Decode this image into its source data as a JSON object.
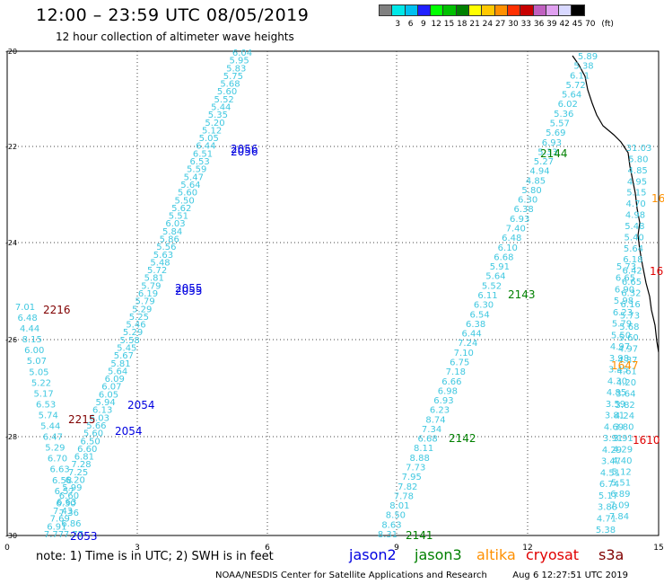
{
  "header": {
    "title": "12:00 – 23:59 UTC 08/05/2019",
    "subtitle": "12 hour collection of altimeter wave heights"
  },
  "color_scale": {
    "unit_label": "(ft)",
    "colors": [
      "#808080",
      "#00e8e8",
      "#00c0f0",
      "#2020ff",
      "#00ff00",
      "#00c000",
      "#008000",
      "#ffff00",
      "#ffc800",
      "#ff9000",
      "#ff3000",
      "#c80000",
      "#c060c0",
      "#e0a0f0",
      "#d8d8ff",
      "#000000"
    ],
    "labels": [
      "3",
      "6",
      "9",
      "12",
      "15",
      "18",
      "21",
      "24",
      "27",
      "30",
      "33",
      "36",
      "39",
      "42",
      "45",
      "70"
    ]
  },
  "axes": {
    "x_ticks": [
      "0",
      "3",
      "6",
      "9",
      "12",
      "15"
    ],
    "y_ticks": [
      "-20",
      "-22",
      "-24",
      "-26",
      "-28",
      "-30"
    ]
  },
  "tracks": [
    {
      "name": "track-jason2-2053-2056",
      "color": "#40c8e0",
      "x0": 270,
      "y0": 62,
      "x1": 60,
      "y1": 598,
      "values": [
        "6.04",
        "5.95",
        "5.83",
        "5.75",
        "5.68",
        "5.60",
        "5.52",
        "5.44",
        "5.35",
        "5.20",
        "5.12",
        "5.05",
        "6.44",
        "6.51",
        "6.53",
        "5.59",
        "5.47",
        "5.64",
        "5.60",
        "5.50",
        "5.62",
        "5.51",
        "6.03",
        "5.84",
        "5.86",
        "5.56",
        "5.63",
        "5.48",
        "5.72",
        "5.81",
        "5.79",
        "6.19",
        "5.79",
        "5.29",
        "5.25",
        "5.46",
        "5.29",
        "5.58",
        "5.45",
        "5.67",
        "5.81",
        "5.64",
        "6.09",
        "6.07",
        "6.05",
        "5.94",
        "6.13",
        "6.03",
        "5.66",
        "5.60",
        "6.50",
        "6.60",
        "6.81",
        "7.28",
        "7.25",
        "6.20",
        "5.99",
        "6.60",
        "6.30",
        "7.43",
        "7.69",
        "6.91",
        "7.77"
      ]
    },
    {
      "name": "track-jason2-left",
      "color": "#40c8e0",
      "x0": 28,
      "y0": 345,
      "x1": 82,
      "y1": 598,
      "values": [
        "7.01",
        "6.48",
        "4.44",
        "8.15",
        "6.00",
        "5.07",
        "5.05",
        "5.22",
        "5.17",
        "6.53",
        "5.74",
        "5.44",
        "6.47",
        "5.29",
        "6.70",
        "6.63",
        "6.58",
        "6.57",
        "6.63",
        "7.36",
        "6.86",
        "7.77"
      ]
    },
    {
      "name": "track-jason3-2141-2144",
      "color": "#40c8e0",
      "x0": 655,
      "y0": 66,
      "x1": 432,
      "y1": 598,
      "values": [
        "5.89",
        "5.38",
        "6.11",
        "5.72",
        "5.64",
        "6.02",
        "5.36",
        "5.57",
        "5.69",
        "6.93",
        "5.33",
        "5.27",
        "4.94",
        "4.85",
        "5.80",
        "6.30",
        "6.38",
        "6.93",
        "7.40",
        "6.48",
        "6.10",
        "6.68",
        "5.91",
        "5.64",
        "5.52",
        "6.11",
        "6.30",
        "6.54",
        "6.38",
        "6.44",
        "7.24",
        "7.10",
        "6.75",
        "7.18",
        "6.66",
        "6.98",
        "6.93",
        "6.23",
        "8.74",
        "7.34",
        "6.68",
        "8.11",
        "8.88",
        "7.73",
        "7.95",
        "7.82",
        "7.78",
        "8.01",
        "8.50",
        "8.63",
        "8.31"
      ]
    },
    {
      "name": "track-s3a-right",
      "color": "#40c8e0",
      "x0": 712,
      "y0": 168,
      "x1": 690,
      "y1": 578,
      "values": [
        "31.03",
        "5.80",
        "4.85",
        "4.95",
        "5.15",
        "4.70",
        "4.98",
        "5.48",
        "5.40",
        "5.64",
        "6.18",
        "6.42",
        "6.65",
        "6.32",
        "6.16",
        "5.73",
        "5.68",
        "5.60",
        "4.97",
        "4.87",
        "4.61",
        "4.20",
        "3.64",
        "3.82",
        "4.24",
        "3.80",
        "3.91",
        "4.29",
        "4.40",
        "5.12",
        "5.51",
        "6.89",
        "7.09",
        "7.84"
      ]
    },
    {
      "name": "track-right-inner",
      "color": "#40c8e0",
      "x0": 698,
      "y0": 300,
      "x1": 675,
      "y1": 593,
      "values": [
        "5.73",
        "6.65",
        "6.90",
        "5.98",
        "6.23",
        "5.79",
        "5.50",
        "4.97",
        "3.98",
        "3.45",
        "4.30",
        "4.85",
        "3.59",
        "3.81",
        "4.69",
        "3.91",
        "4.29",
        "3.47",
        "4.51",
        "6.74",
        "5.17",
        "3.88",
        "4.71",
        "5.38"
      ]
    }
  ],
  "pass_labels": [
    {
      "text": "2056",
      "color": "#0000e0"
    },
    {
      "text": "2056",
      "color": "#0000e0"
    },
    {
      "text": "2055",
      "color": "#0000e0"
    },
    {
      "text": "2055",
      "color": "#0000e0"
    },
    {
      "text": "2054",
      "color": "#0000e0"
    },
    {
      "text": "2054",
      "color": "#0000e0"
    },
    {
      "text": "2053",
      "color": "#0000e0"
    },
    {
      "text": "2216",
      "color": "#800000"
    },
    {
      "text": "2215",
      "color": "#800000"
    },
    {
      "text": "2144",
      "color": "#008000"
    },
    {
      "text": "2143",
      "color": "#008000"
    },
    {
      "text": "2142",
      "color": "#008000"
    },
    {
      "text": "2141",
      "color": "#008000"
    },
    {
      "text": "1647",
      "color": "#ff9000"
    },
    {
      "text": "1610",
      "color": "#e00000"
    },
    {
      "text": "16",
      "color": "#ff9000"
    },
    {
      "text": "16",
      "color": "#e00000"
    }
  ],
  "footer": {
    "note": "note:  1) Time is in UTC;  2) SWH is in feet",
    "legend": [
      {
        "label": "jason2",
        "color": "#0000e0"
      },
      {
        "label": "jason3",
        "color": "#008000"
      },
      {
        "label": "altika",
        "color": "#ff9000"
      },
      {
        "label": "cryosat",
        "color": "#e00000"
      },
      {
        "label": "s3a",
        "color": "#800000"
      }
    ],
    "credit": "NOAA/NESDIS Center for Satellite Applications and Research",
    "timestamp": "Aug  6 12:27:51 UTC 2019"
  }
}
